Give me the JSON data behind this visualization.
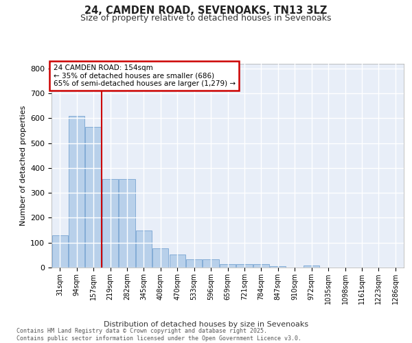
{
  "title": "24, CAMDEN ROAD, SEVENOAKS, TN13 3LZ",
  "subtitle": "Size of property relative to detached houses in Sevenoaks",
  "xlabel": "Distribution of detached houses by size in Sevenoaks",
  "ylabel": "Number of detached properties",
  "bar_values": [
    130,
    608,
    565,
    355,
    355,
    150,
    78,
    52,
    32,
    32,
    15,
    13,
    13,
    5,
    0,
    7,
    0,
    0,
    0,
    0,
    0
  ],
  "bin_labels": [
    "31sqm",
    "94sqm",
    "157sqm",
    "219sqm",
    "282sqm",
    "345sqm",
    "408sqm",
    "470sqm",
    "533sqm",
    "596sqm",
    "659sqm",
    "721sqm",
    "784sqm",
    "847sqm",
    "910sqm",
    "972sqm",
    "1035sqm",
    "1098sqm",
    "1161sqm",
    "1223sqm",
    "1286sqm"
  ],
  "bar_color": "#b8d0ea",
  "bar_edge_color": "#6699cc",
  "background_color": "#e8eef8",
  "grid_color": "#ffffff",
  "vline_color": "#cc0000",
  "vline_x": 2.5,
  "annotation_text": "24 CAMDEN ROAD: 154sqm\n← 35% of detached houses are smaller (686)\n65% of semi-detached houses are larger (1,279) →",
  "annotation_box_color": "#cc0000",
  "footer_text": "Contains HM Land Registry data © Crown copyright and database right 2025.\nContains public sector information licensed under the Open Government Licence v3.0.",
  "ylim": [
    0,
    820
  ],
  "yticks": [
    0,
    100,
    200,
    300,
    400,
    500,
    600,
    700,
    800
  ]
}
